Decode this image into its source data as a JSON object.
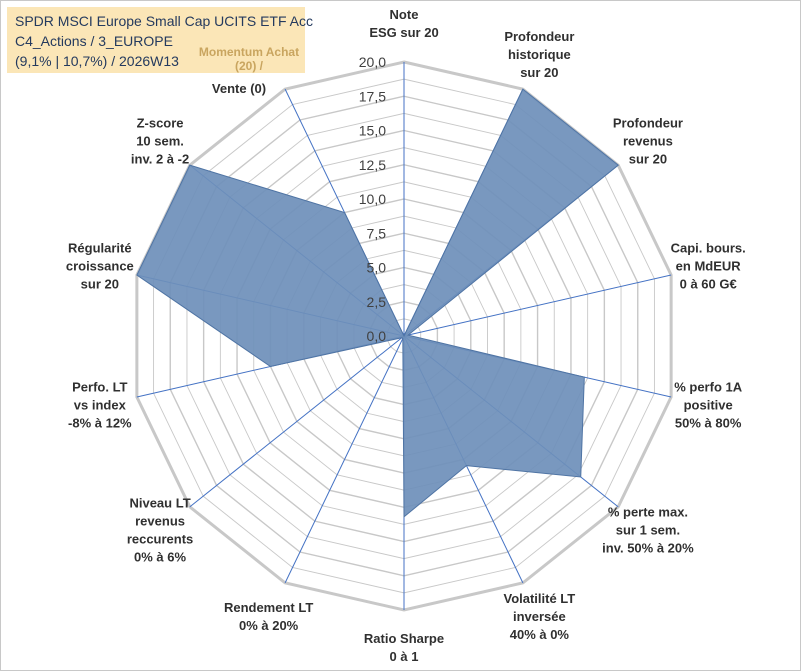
{
  "header": {
    "line1": "SPDR MSCI Europe Small Cap UCITS ETF Acc",
    "line2": "C4_Actions / 3_EUROPE",
    "line3": "(9,1% | 10,7%) / 2026W13",
    "momentum_note": "Momentum Achat (20) /"
  },
  "colors": {
    "fill": "#6e8fba",
    "stroke": "#4f74a4",
    "grid": "#c8c8c8",
    "spoke": "#4472c4",
    "title_bg": "#fbe6b7"
  },
  "chart_data": {
    "type": "radar",
    "title": "SPDR MSCI Europe Small Cap UCITS ETF Acc",
    "rlim": [
      0,
      20
    ],
    "tick_step": 2.5,
    "tick_labels": [
      "0,0",
      "2,5",
      "5,0",
      "7,5",
      "10,0",
      "12,5",
      "15,0",
      "17,5",
      "20,0"
    ],
    "axes": [
      {
        "label": [
          "Note",
          "ESG sur 20"
        ],
        "value": 0
      },
      {
        "label": [
          "Profondeur",
          "historique",
          "sur 20"
        ],
        "value": 20
      },
      {
        "label": [
          "Profondeur",
          "revenus",
          "sur 20"
        ],
        "value": 20
      },
      {
        "label": [
          "Capi. bours.",
          "en MdEUR",
          "0 à 60 G€"
        ],
        "value": 0.3
      },
      {
        "label": [
          "% perfo 1A",
          "positive",
          "50% à 80%"
        ],
        "value": 13.5
      },
      {
        "label": [
          "% perte max.",
          "sur 1 sem.",
          "inv. 50% à 20%"
        ],
        "value": 16.5
      },
      {
        "label": [
          "Volatilité LT",
          "inversée",
          "40% à 0%"
        ],
        "value": 10.5
      },
      {
        "label": [
          "Ratio Sharpe",
          "0 à 1"
        ],
        "value": 13.2
      },
      {
        "label": [
          "Rendement LT",
          "0% à 20%"
        ],
        "value": 0.2
      },
      {
        "label": [
          "Niveau LT",
          "revenus",
          "reccurents",
          "0% à 6%"
        ],
        "value": 0.2
      },
      {
        "label": [
          "Perfo. LT",
          "vs index",
          "-8% à 12%"
        ],
        "value": 10.0
      },
      {
        "label": [
          "Régularité",
          "croissance",
          "sur 20"
        ],
        "value": 20
      },
      {
        "label": [
          "Z-score",
          "10 sem.",
          "inv. 2 à -2"
        ],
        "value": 20
      },
      {
        "label": [
          "Momentum",
          "Achat (20) /",
          "Vente (0)"
        ],
        "value": 10.0
      }
    ]
  }
}
